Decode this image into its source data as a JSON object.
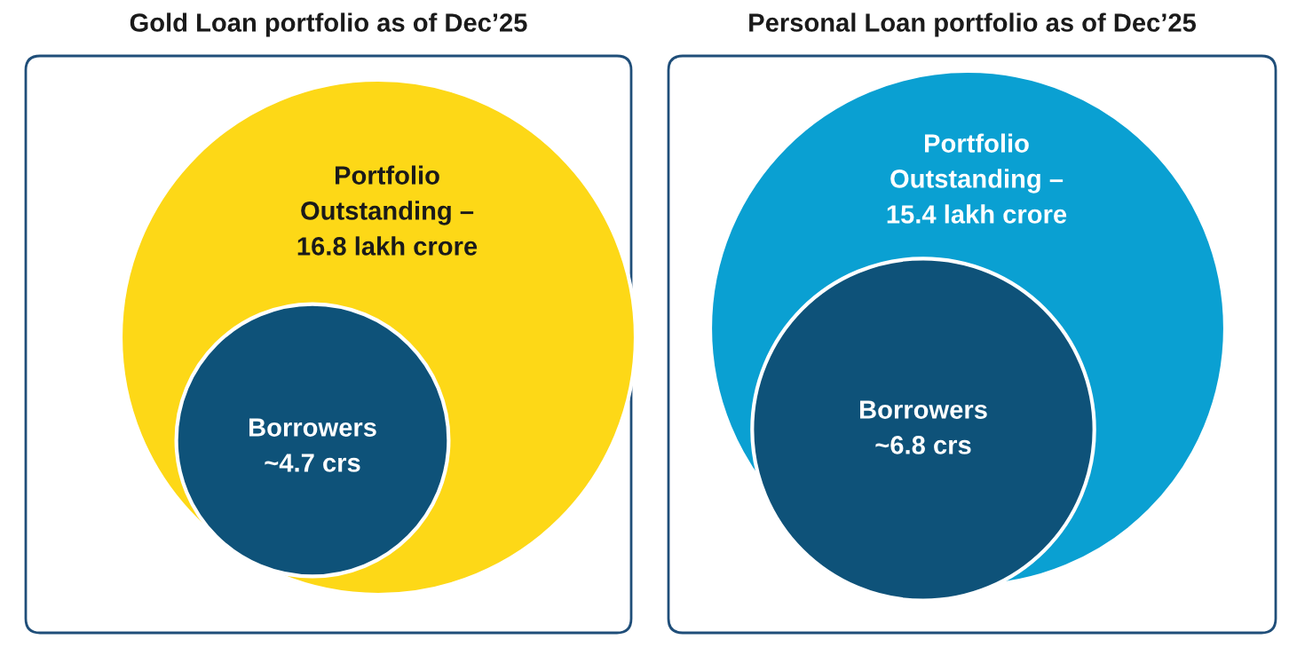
{
  "chart_data": [
    {
      "type": "other",
      "title": "Gold Loan portfolio as of Dec’25",
      "categories": [
        "Portfolio\nOutstanding –",
        "Borrowers"
      ],
      "values": [
        16.8,
        4.7
      ],
      "value_labels": [
        "16.8 lakh crore",
        "~4.7 crs"
      ],
      "colors": [
        "#fdd817",
        "#0e5279"
      ]
    },
    {
      "type": "other",
      "title": "Personal Loan portfolio as of Dec’25",
      "categories": [
        "Portfolio\nOutstanding –",
        "Borrowers"
      ],
      "values": [
        15.4,
        6.8
      ],
      "value_labels": [
        "15.4 lakh crore",
        "~6.8 crs"
      ],
      "colors": [
        "#0aa0d2",
        "#0e5279"
      ]
    }
  ]
}
